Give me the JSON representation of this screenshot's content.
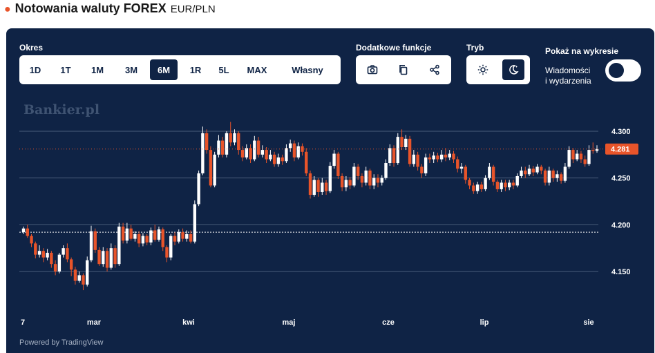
{
  "header": {
    "title": "Notowania waluty FOREX",
    "subtitle": "EUR/PLN",
    "accent": "#e8542a"
  },
  "controls": {
    "period_label": "Okres",
    "periods": [
      "1D",
      "1T",
      "1M",
      "3M",
      "6M",
      "1R",
      "5L",
      "MAX",
      "Własny"
    ],
    "active_period": "6M",
    "extra_label": "Dodatkowe funkcje",
    "extra_icons": [
      "camera-icon",
      "copy-icon",
      "share-icon"
    ],
    "mode_label": "Tryb",
    "mode_icons": [
      "sun-icon",
      "moon-icon"
    ],
    "active_mode": "moon-icon",
    "show_label": "Pokaż na wykresie",
    "events_line1": "Wiadomości",
    "events_line2": "i wydarzenia",
    "events_toggle": true
  },
  "watermark": "Bankier.pl",
  "powered": "Powered by TradingView",
  "colors": {
    "background": "#0f2345",
    "up": "#ffffff",
    "down": "#e8542a",
    "grid": "#4a5d7a"
  },
  "chart_data": {
    "type": "candlestick",
    "title": "Notowania waluty FOREX",
    "pair": "EUR/PLN",
    "period": "6M",
    "x_labels": [
      "7",
      "mar",
      "kwi",
      "maj",
      "cze",
      "lip",
      "sie"
    ],
    "y_ticks": [
      4.15,
      4.2,
      4.25,
      4.3
    ],
    "y_tick_labels": [
      "4.150",
      "4.200",
      "4.250",
      "4.300"
    ],
    "ylim": [
      4.1,
      4.34
    ],
    "last_price": 4.281,
    "last_price_label": "4.281",
    "reference_level": 4.192,
    "grid": true,
    "candles": [
      [
        4.192,
        4.196,
        4.19,
        4.198
      ],
      [
        4.196,
        4.188,
        4.186,
        4.2
      ],
      [
        4.188,
        4.18,
        4.176,
        4.19
      ],
      [
        4.18,
        4.168,
        4.164,
        4.182
      ],
      [
        4.168,
        4.172,
        4.165,
        4.178
      ],
      [
        4.172,
        4.165,
        4.16,
        4.175
      ],
      [
        4.165,
        4.17,
        4.162,
        4.174
      ],
      [
        4.17,
        4.158,
        4.154,
        4.172
      ],
      [
        4.158,
        4.15,
        4.146,
        4.162
      ],
      [
        4.15,
        4.168,
        4.148,
        4.17
      ],
      [
        4.168,
        4.175,
        4.165,
        4.178
      ],
      [
        4.175,
        4.163,
        4.16,
        4.18
      ],
      [
        4.163,
        4.152,
        4.145,
        4.165
      ],
      [
        4.152,
        4.14,
        4.136,
        4.155
      ],
      [
        4.14,
        4.146,
        4.138,
        4.15
      ],
      [
        4.146,
        4.136,
        4.13,
        4.148
      ],
      [
        4.136,
        4.162,
        4.134,
        4.166
      ],
      [
        4.162,
        4.193,
        4.16,
        4.199
      ],
      [
        4.193,
        4.173,
        4.17,
        4.196
      ],
      [
        4.173,
        4.158,
        4.156,
        4.176
      ],
      [
        4.158,
        4.172,
        4.155,
        4.176
      ],
      [
        4.172,
        4.154,
        4.15,
        4.175
      ],
      [
        4.154,
        4.175,
        4.152,
        4.18
      ],
      [
        4.175,
        4.158,
        4.154,
        4.178
      ],
      [
        4.158,
        4.198,
        4.156,
        4.202
      ],
      [
        4.198,
        4.183,
        4.18,
        4.202
      ],
      [
        4.183,
        4.196,
        4.18,
        4.202
      ],
      [
        4.196,
        4.185,
        4.183,
        4.2
      ],
      [
        4.185,
        4.19,
        4.182,
        4.193
      ],
      [
        4.19,
        4.18,
        4.176,
        4.193
      ],
      [
        4.18,
        4.188,
        4.177,
        4.191
      ],
      [
        4.188,
        4.181,
        4.178,
        4.19
      ],
      [
        4.181,
        4.194,
        4.178,
        4.197
      ],
      [
        4.194,
        4.184,
        4.182,
        4.2
      ],
      [
        4.184,
        4.195,
        4.182,
        4.198
      ],
      [
        4.195,
        4.176,
        4.172,
        4.197
      ],
      [
        4.176,
        4.165,
        4.16,
        4.178
      ],
      [
        4.165,
        4.188,
        4.162,
        4.19
      ],
      [
        4.188,
        4.182,
        4.178,
        4.192
      ],
      [
        4.182,
        4.192,
        4.18,
        4.195
      ],
      [
        4.192,
        4.185,
        4.182,
        4.196
      ],
      [
        4.185,
        4.19,
        4.182,
        4.194
      ],
      [
        4.19,
        4.182,
        4.18,
        4.194
      ],
      [
        4.182,
        4.222,
        4.18,
        4.226
      ],
      [
        4.222,
        4.255,
        4.22,
        4.258
      ],
      [
        4.255,
        4.298,
        4.253,
        4.305
      ],
      [
        4.298,
        4.28,
        4.276,
        4.302
      ],
      [
        4.28,
        4.242,
        4.24,
        4.284
      ],
      [
        4.242,
        4.275,
        4.24,
        4.278
      ],
      [
        4.275,
        4.29,
        4.272,
        4.296
      ],
      [
        4.29,
        4.275,
        4.272,
        4.294
      ],
      [
        4.275,
        4.298,
        4.272,
        4.3
      ],
      [
        4.298,
        4.288,
        4.284,
        4.31
      ],
      [
        4.288,
        4.298,
        4.285,
        4.302
      ],
      [
        4.298,
        4.28,
        4.275,
        4.3
      ],
      [
        4.28,
        4.272,
        4.268,
        4.284
      ],
      [
        4.272,
        4.282,
        4.27,
        4.286
      ],
      [
        4.282,
        4.27,
        4.266,
        4.286
      ],
      [
        4.27,
        4.29,
        4.268,
        4.295
      ],
      [
        4.29,
        4.275,
        4.272,
        4.294
      ],
      [
        4.275,
        4.28,
        4.272,
        4.285
      ],
      [
        4.28,
        4.27,
        4.266,
        4.283
      ],
      [
        4.27,
        4.275,
        4.268,
        4.28
      ],
      [
        4.275,
        4.265,
        4.262,
        4.278
      ],
      [
        4.265,
        4.272,
        4.262,
        4.276
      ],
      [
        4.272,
        4.268,
        4.264,
        4.275
      ],
      [
        4.268,
        4.282,
        4.266,
        4.286
      ],
      [
        4.282,
        4.287,
        4.278,
        4.291
      ],
      [
        4.287,
        4.272,
        4.268,
        4.29
      ],
      [
        4.272,
        4.284,
        4.27,
        4.288
      ],
      [
        4.284,
        4.278,
        4.274,
        4.287
      ],
      [
        4.278,
        4.255,
        4.252,
        4.282
      ],
      [
        4.255,
        4.232,
        4.228,
        4.258
      ],
      [
        4.232,
        4.248,
        4.23,
        4.252
      ],
      [
        4.248,
        4.235,
        4.23,
        4.25
      ],
      [
        4.235,
        4.245,
        4.232,
        4.25
      ],
      [
        4.245,
        4.236,
        4.232,
        4.248
      ],
      [
        4.236,
        4.263,
        4.234,
        4.267
      ],
      [
        4.263,
        4.276,
        4.26,
        4.28
      ],
      [
        4.276,
        4.252,
        4.249,
        4.278
      ],
      [
        4.252,
        4.24,
        4.236,
        4.255
      ],
      [
        4.24,
        4.248,
        4.236,
        4.252
      ],
      [
        4.248,
        4.242,
        4.238,
        4.251
      ],
      [
        4.242,
        4.262,
        4.24,
        4.266
      ],
      [
        4.262,
        4.252,
        4.248,
        4.265
      ],
      [
        4.252,
        4.245,
        4.24,
        4.255
      ],
      [
        4.245,
        4.258,
        4.242,
        4.262
      ],
      [
        4.258,
        4.242,
        4.238,
        4.26
      ],
      [
        4.242,
        4.25,
        4.238,
        4.254
      ],
      [
        4.25,
        4.245,
        4.24,
        4.254
      ],
      [
        4.245,
        4.25,
        4.242,
        4.253
      ],
      [
        4.25,
        4.266,
        4.248,
        4.27
      ],
      [
        4.266,
        4.282,
        4.263,
        4.286
      ],
      [
        4.282,
        4.266,
        4.262,
        4.285
      ],
      [
        4.266,
        4.294,
        4.264,
        4.298
      ],
      [
        4.294,
        4.283,
        4.28,
        4.302
      ],
      [
        4.283,
        4.292,
        4.28,
        4.296
      ],
      [
        4.292,
        4.265,
        4.262,
        4.295
      ],
      [
        4.265,
        4.275,
        4.262,
        4.28
      ],
      [
        4.275,
        4.262,
        4.258,
        4.278
      ],
      [
        4.262,
        4.255,
        4.25,
        4.265
      ],
      [
        4.255,
        4.272,
        4.252,
        4.276
      ],
      [
        4.272,
        4.27,
        4.266,
        4.276
      ],
      [
        4.27,
        4.274,
        4.266,
        4.278
      ],
      [
        4.274,
        4.27,
        4.267,
        4.277
      ],
      [
        4.27,
        4.275,
        4.267,
        4.28
      ],
      [
        4.275,
        4.272,
        4.268,
        4.282
      ],
      [
        4.272,
        4.276,
        4.269,
        4.28
      ],
      [
        4.276,
        4.27,
        4.266,
        4.279
      ],
      [
        4.27,
        4.26,
        4.256,
        4.273
      ],
      [
        4.26,
        4.262,
        4.255,
        4.266
      ],
      [
        4.262,
        4.248,
        4.244,
        4.264
      ],
      [
        4.248,
        4.242,
        4.238,
        4.25
      ],
      [
        4.242,
        4.236,
        4.233,
        4.245
      ],
      [
        4.236,
        4.243,
        4.233,
        4.246
      ],
      [
        4.243,
        4.238,
        4.235,
        4.246
      ],
      [
        4.238,
        4.25,
        4.236,
        4.253
      ],
      [
        4.25,
        4.262,
        4.248,
        4.266
      ],
      [
        4.262,
        4.246,
        4.242,
        4.264
      ],
      [
        4.246,
        4.238,
        4.235,
        4.248
      ],
      [
        4.238,
        4.245,
        4.235,
        4.248
      ],
      [
        4.245,
        4.24,
        4.236,
        4.248
      ],
      [
        4.24,
        4.245,
        4.237,
        4.248
      ],
      [
        4.245,
        4.242,
        4.238,
        4.248
      ],
      [
        4.242,
        4.252,
        4.24,
        4.255
      ],
      [
        4.252,
        4.258,
        4.25,
        4.262
      ],
      [
        4.258,
        4.254,
        4.25,
        4.262
      ],
      [
        4.254,
        4.26,
        4.252,
        4.264
      ],
      [
        4.26,
        4.256,
        4.252,
        4.263
      ],
      [
        4.256,
        4.262,
        4.254,
        4.265
      ],
      [
        4.262,
        4.258,
        4.254,
        4.264
      ],
      [
        4.258,
        4.245,
        4.242,
        4.26
      ],
      [
        4.245,
        4.258,
        4.242,
        4.262
      ],
      [
        4.258,
        4.25,
        4.246,
        4.26
      ],
      [
        4.25,
        4.254,
        4.246,
        4.258
      ],
      [
        4.254,
        4.247,
        4.244,
        4.256
      ],
      [
        4.247,
        4.262,
        4.245,
        4.266
      ],
      [
        4.262,
        4.28,
        4.26,
        4.284
      ],
      [
        4.28,
        4.27,
        4.266,
        4.282
      ],
      [
        4.27,
        4.276,
        4.268,
        4.28
      ],
      [
        4.276,
        4.27,
        4.266,
        4.279
      ],
      [
        4.27,
        4.265,
        4.262,
        4.274
      ],
      [
        4.265,
        4.28,
        4.263,
        4.285
      ],
      [
        4.28,
        4.279,
        4.276,
        4.288
      ],
      [
        4.279,
        4.281,
        4.277,
        4.285
      ]
    ]
  }
}
